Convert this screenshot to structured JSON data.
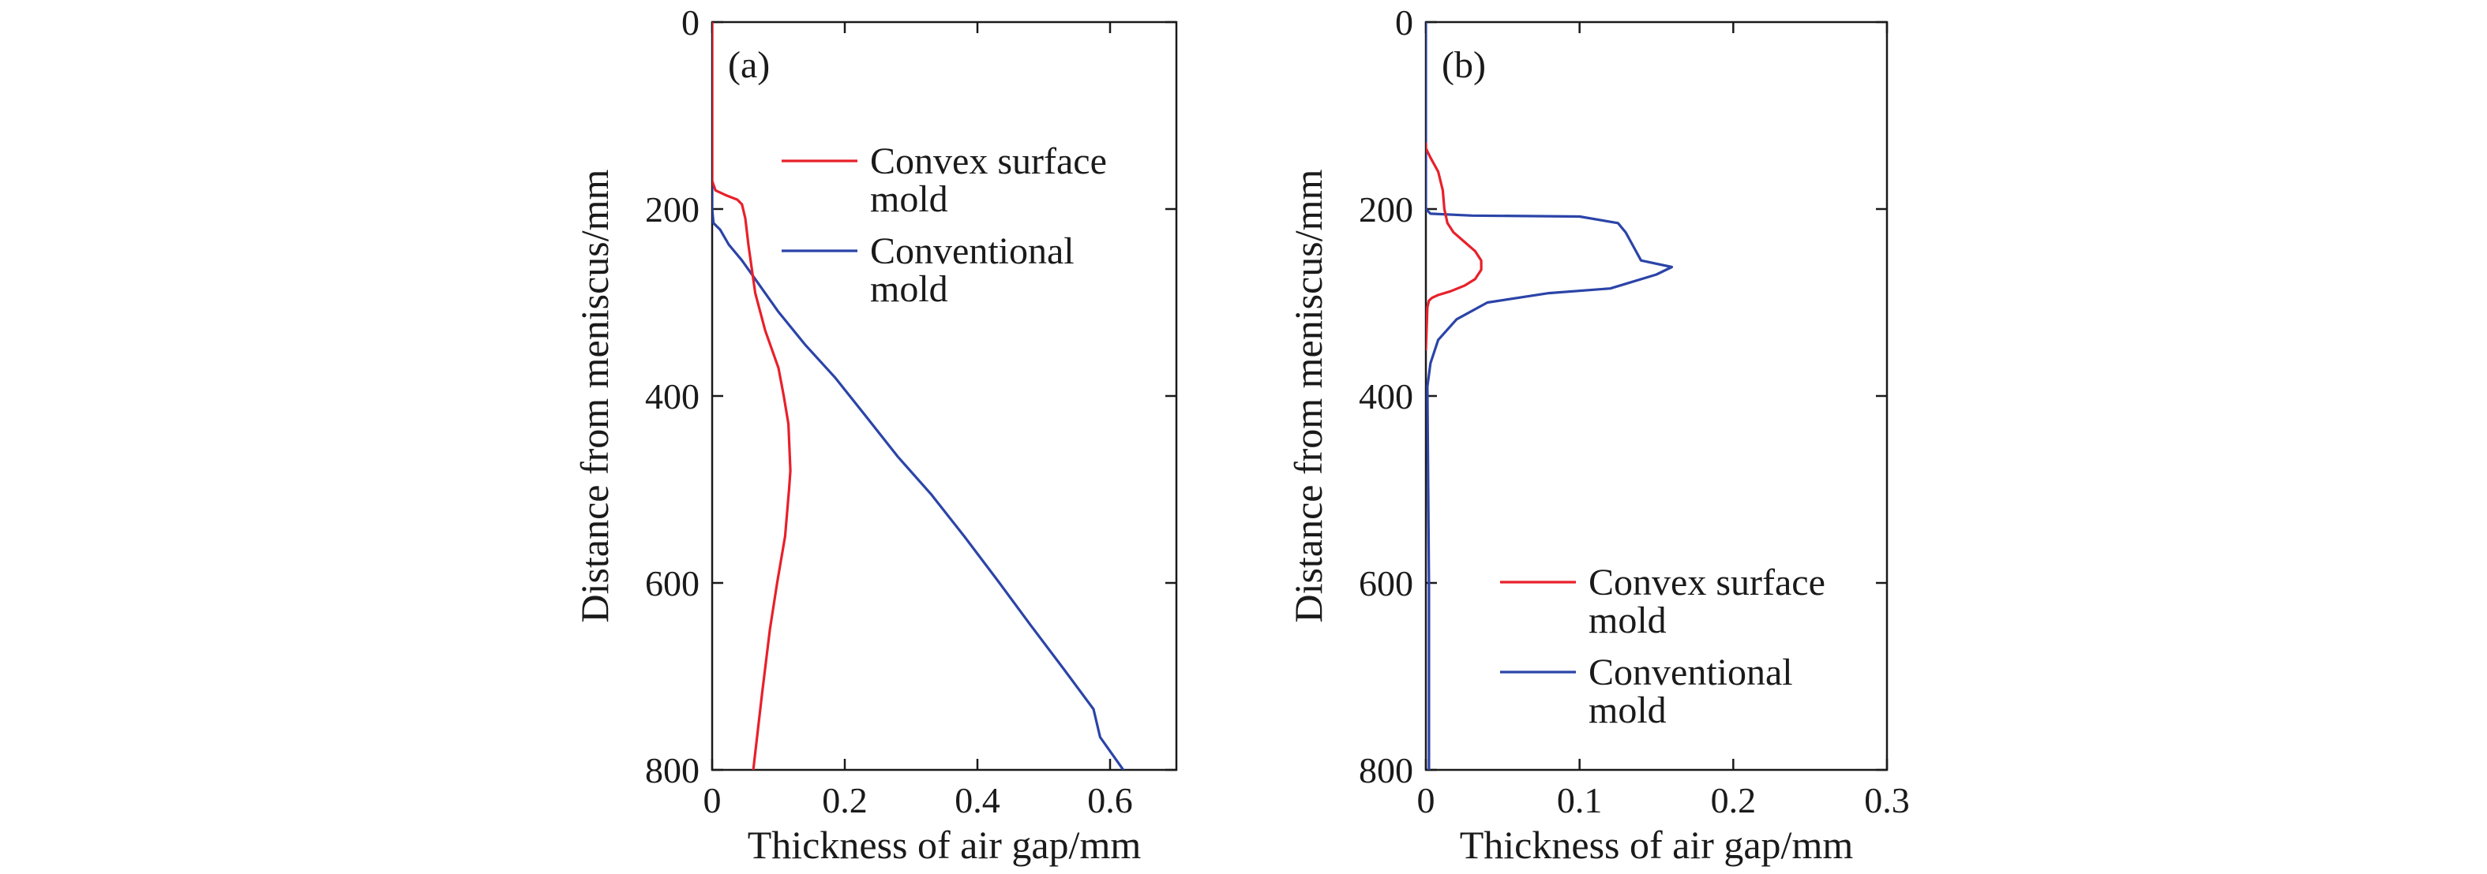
{
  "colors": {
    "convex": "#e8202a",
    "conventional": "#2b44a8",
    "axis": "#1a1a1a"
  },
  "chart_data": [
    {
      "type": "line",
      "panel_label": "(a)",
      "xlabel": "Thickness of air gap/mm",
      "ylabel": "Distance from meniscus/mm",
      "xlim": [
        0,
        0.7
      ],
      "ylim": [
        800,
        0
      ],
      "y_inverted": true,
      "x_ticks": [
        0,
        0.2,
        0.4,
        0.6
      ],
      "x_tick_labels": [
        "0",
        "0.2",
        "0.4",
        "0.6"
      ],
      "y_ticks": [
        0,
        200,
        400,
        600,
        800
      ],
      "y_tick_labels": [
        "0",
        "200",
        "400",
        "600",
        "800"
      ],
      "legend_position": "upper-right",
      "series": [
        {
          "name": "Convex surface mold",
          "name_lines": [
            "Convex surface",
            "mold"
          ],
          "color_key": "convex",
          "x": [
            0.0,
            0.0,
            0.0,
            0.005,
            0.02,
            0.038,
            0.045,
            0.05,
            0.055,
            0.065,
            0.08,
            0.1,
            0.108,
            0.115,
            0.118,
            0.116,
            0.11,
            0.098,
            0.087,
            0.075,
            0.062
          ],
          "y": [
            0,
            100,
            170,
            180,
            185,
            190,
            195,
            210,
            240,
            290,
            330,
            370,
            400,
            430,
            480,
            500,
            550,
            600,
            650,
            720,
            800
          ]
        },
        {
          "name": "Conventional mold",
          "name_lines": [
            "Conventional",
            "mold"
          ],
          "color_key": "conventional",
          "x": [
            0.0,
            0.0,
            0.0,
            0.002,
            0.012,
            0.025,
            0.045,
            0.07,
            0.1,
            0.14,
            0.185,
            0.23,
            0.28,
            0.33,
            0.38,
            0.43,
            0.48,
            0.53,
            0.575,
            0.585,
            0.6,
            0.62
          ],
          "y": [
            0,
            100,
            200,
            215,
            222,
            238,
            255,
            280,
            310,
            345,
            380,
            420,
            465,
            505,
            550,
            597,
            645,
            692,
            735,
            765,
            780,
            800
          ]
        }
      ]
    },
    {
      "type": "line",
      "panel_label": "(b)",
      "xlabel": "Thickness of air gap/mm",
      "ylabel": "Distance from meniscus/mm",
      "xlim": [
        0,
        0.3
      ],
      "ylim": [
        800,
        0
      ],
      "y_inverted": true,
      "x_ticks": [
        0,
        0.1,
        0.2,
        0.3
      ],
      "x_tick_labels": [
        "0",
        "0.1",
        "0.2",
        "0.3"
      ],
      "y_ticks": [
        0,
        200,
        400,
        600,
        800
      ],
      "y_tick_labels": [
        "0",
        "200",
        "400",
        "600",
        "800"
      ],
      "legend_position": "lower-right",
      "series": [
        {
          "name": "Convex surface mold",
          "name_lines": [
            "Convex surface",
            "mold"
          ],
          "color_key": "convex",
          "x": [
            0.0,
            0.0,
            0.003,
            0.008,
            0.011,
            0.012,
            0.014,
            0.018,
            0.025,
            0.032,
            0.036,
            0.036,
            0.032,
            0.025,
            0.016,
            0.008,
            0.004,
            0.002,
            0.001,
            0.0
          ],
          "y": [
            130,
            135,
            145,
            160,
            180,
            200,
            215,
            225,
            235,
            245,
            255,
            265,
            275,
            282,
            288,
            292,
            295,
            298,
            305,
            350
          ]
        },
        {
          "name": "Conventional mold",
          "name_lines": [
            "Conventional",
            "mold"
          ],
          "color_key": "conventional",
          "x": [
            0.0,
            0.0,
            0.003,
            0.03,
            0.1,
            0.125,
            0.13,
            0.135,
            0.14,
            0.16,
            0.15,
            0.13,
            0.12,
            0.08,
            0.04,
            0.02,
            0.008,
            0.003,
            0.001,
            0.002,
            0.002
          ],
          "y": [
            0,
            200,
            205,
            207,
            208,
            215,
            225,
            240,
            255,
            262,
            270,
            280,
            285,
            290,
            300,
            318,
            340,
            365,
            390,
            600,
            800
          ]
        }
      ]
    }
  ]
}
